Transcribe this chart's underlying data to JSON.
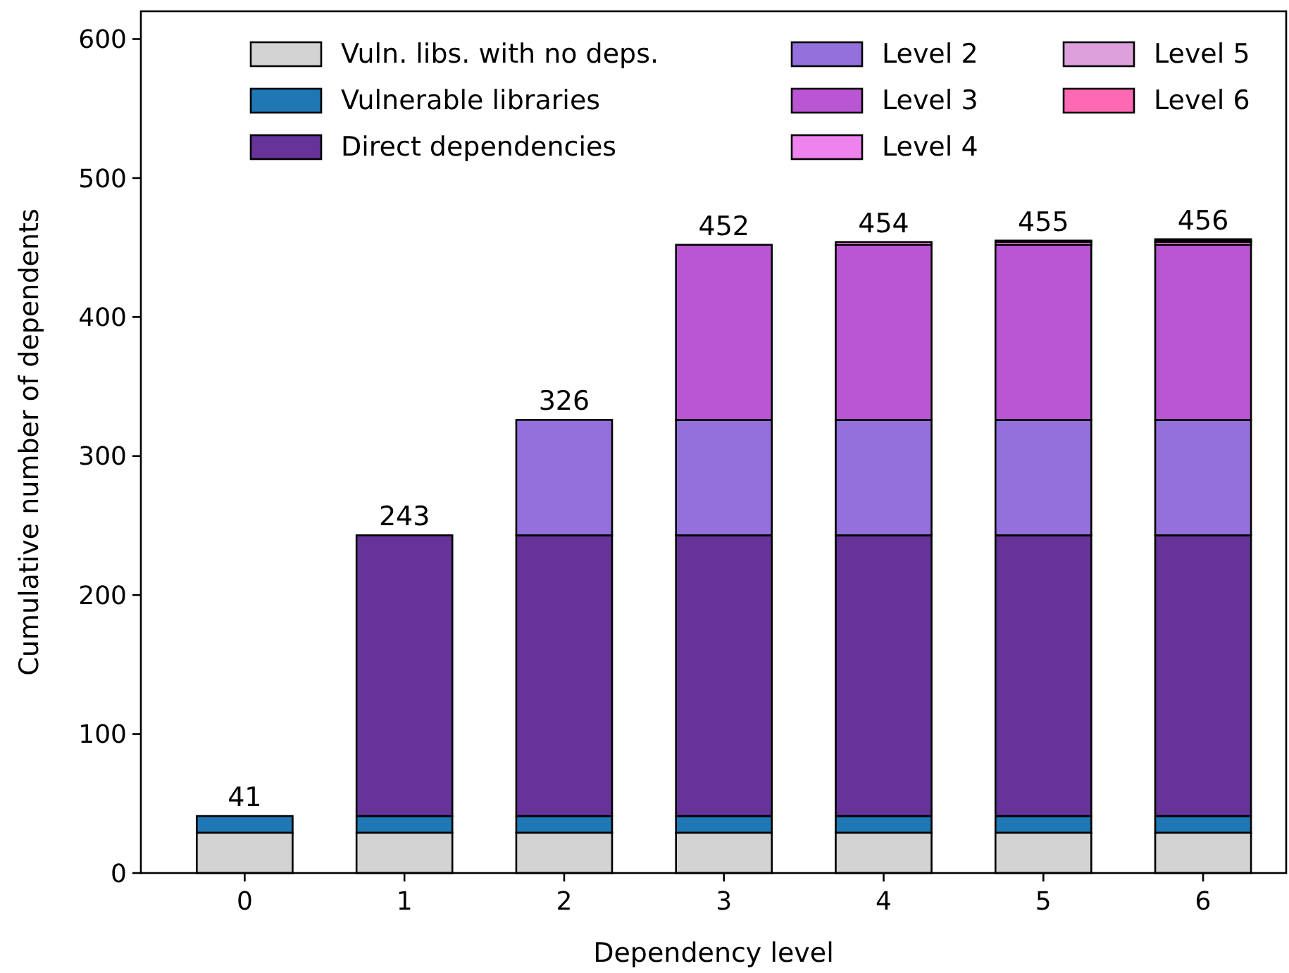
{
  "chart_data": {
    "type": "bar",
    "stacked": true,
    "xlabel": "Dependency level",
    "ylabel": "Cumulative number of dependents",
    "categories": [
      "0",
      "1",
      "2",
      "3",
      "4",
      "5",
      "6"
    ],
    "series": [
      {
        "name": "Vuln. libs. with no deps.",
        "color": "#d3d3d3",
        "values": [
          29,
          29,
          29,
          29,
          29,
          29,
          29
        ]
      },
      {
        "name": "Vulnerable libraries",
        "color": "#1f77b4",
        "values": [
          12,
          12,
          12,
          12,
          12,
          12,
          12
        ]
      },
      {
        "name": "Direct dependencies",
        "color": "#663399",
        "values": [
          null,
          202,
          202,
          202,
          202,
          202,
          202
        ]
      },
      {
        "name": "Level 2",
        "color": "#9370db",
        "values": [
          null,
          null,
          83,
          83,
          83,
          83,
          83
        ]
      },
      {
        "name": "Level 3",
        "color": "#ba55d3",
        "values": [
          null,
          null,
          null,
          126,
          126,
          126,
          126
        ]
      },
      {
        "name": "Level 4",
        "color": "#ee82ee",
        "values": [
          null,
          null,
          null,
          null,
          2,
          2,
          2
        ]
      },
      {
        "name": "Level 5",
        "color": "#dda0dd",
        "values": [
          null,
          null,
          null,
          null,
          null,
          1,
          1
        ]
      },
      {
        "name": "Level 6",
        "color": "#ff69b4",
        "values": [
          null,
          null,
          null,
          null,
          null,
          null,
          1
        ]
      }
    ],
    "totals": [
      "41",
      "243",
      "326",
      "452",
      "454",
      "455",
      "456"
    ],
    "ylim": [
      0,
      620
    ],
    "yticks": [
      0,
      100,
      200,
      300,
      400,
      500,
      600
    ],
    "legend": "top",
    "grid": false
  }
}
